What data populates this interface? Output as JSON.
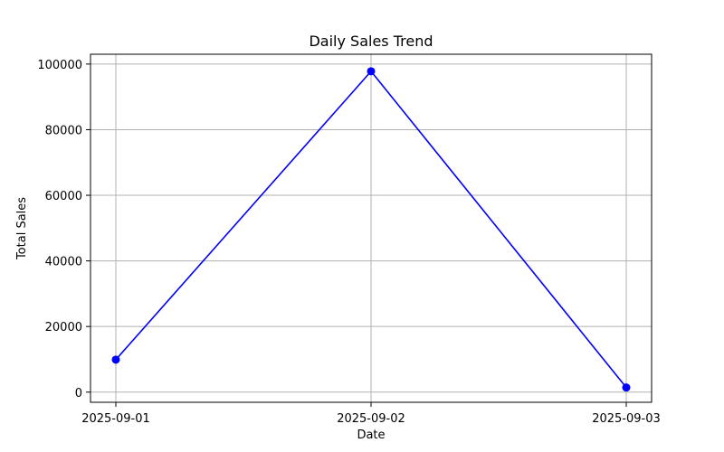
{
  "chart_data": {
    "type": "line",
    "title": "Daily Sales Trend",
    "xlabel": "Date",
    "ylabel": "Total Sales",
    "categories": [
      "2025-09-01",
      "2025-09-02",
      "2025-09-03"
    ],
    "series": [
      {
        "values": [
          9900,
          97800,
          1400
        ]
      }
    ],
    "ylim": [
      -3100,
      103000
    ],
    "yticks": [
      0,
      20000,
      40000,
      60000,
      80000,
      100000
    ],
    "grid": true,
    "line_color": "#0000ff",
    "marker": "circle"
  }
}
